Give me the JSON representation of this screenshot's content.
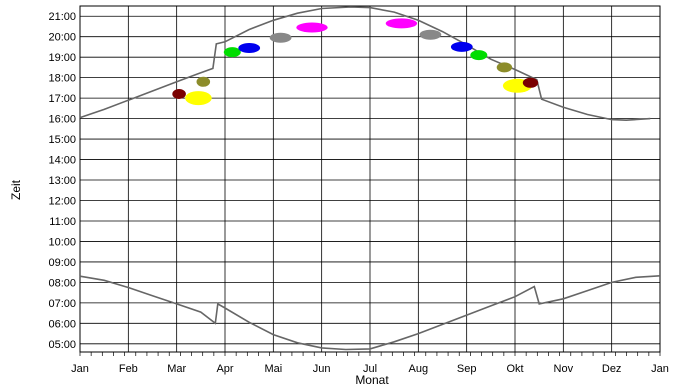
{
  "chart_data": {
    "type": "line",
    "title": "",
    "xlabel": "Monat",
    "ylabel": "Zeit",
    "x_categories": [
      "Jan",
      "Feb",
      "Mar",
      "Apr",
      "Mai",
      "Jun",
      "Jul",
      "Aug",
      "Sep",
      "Okt",
      "Nov",
      "Dez",
      "Jan"
    ],
    "y_ticks": [
      "05:00",
      "06:00",
      "07:00",
      "08:00",
      "09:00",
      "10:00",
      "11:00",
      "12:00",
      "13:00",
      "14:00",
      "15:00",
      "16:00",
      "17:00",
      "18:00",
      "19:00",
      "20:00",
      "21:00"
    ],
    "xlim_months": [
      0,
      12
    ],
    "ylim_hours": [
      4.6,
      21.5
    ],
    "grid": true,
    "series": [
      {
        "role": "sunset",
        "color": "#666666",
        "points": [
          [
            0.0,
            16.05
          ],
          [
            0.5,
            16.45
          ],
          [
            1.0,
            16.9
          ],
          [
            1.5,
            17.35
          ],
          [
            2.0,
            17.8
          ],
          [
            2.45,
            18.2
          ],
          [
            2.75,
            18.45
          ],
          [
            2.82,
            19.65
          ],
          [
            3.0,
            19.75
          ],
          [
            3.5,
            20.35
          ],
          [
            4.0,
            20.8
          ],
          [
            4.5,
            21.15
          ],
          [
            5.0,
            21.38
          ],
          [
            5.6,
            21.45
          ],
          [
            6.0,
            21.42
          ],
          [
            6.5,
            21.2
          ],
          [
            7.0,
            20.8
          ],
          [
            7.5,
            20.25
          ],
          [
            8.0,
            19.6
          ],
          [
            8.5,
            18.9
          ],
          [
            9.0,
            18.4
          ],
          [
            9.45,
            17.9
          ],
          [
            9.55,
            16.95
          ],
          [
            10.0,
            16.55
          ],
          [
            10.5,
            16.2
          ],
          [
            11.0,
            15.95
          ],
          [
            11.3,
            15.92
          ],
          [
            11.8,
            16.0
          ]
        ]
      },
      {
        "role": "sunrise",
        "color": "#666666",
        "points": [
          [
            0.0,
            8.3
          ],
          [
            0.5,
            8.1
          ],
          [
            1.0,
            7.75
          ],
          [
            1.5,
            7.35
          ],
          [
            2.0,
            6.95
          ],
          [
            2.5,
            6.55
          ],
          [
            2.8,
            6.0
          ],
          [
            2.85,
            6.95
          ],
          [
            3.0,
            6.75
          ],
          [
            3.5,
            6.05
          ],
          [
            4.0,
            5.45
          ],
          [
            4.5,
            5.05
          ],
          [
            5.0,
            4.8
          ],
          [
            5.5,
            4.72
          ],
          [
            6.0,
            4.75
          ],
          [
            6.5,
            5.1
          ],
          [
            7.0,
            5.5
          ],
          [
            7.5,
            5.95
          ],
          [
            8.0,
            6.4
          ],
          [
            8.5,
            6.85
          ],
          [
            9.0,
            7.3
          ],
          [
            9.4,
            7.8
          ],
          [
            9.5,
            6.95
          ],
          [
            10.0,
            7.2
          ],
          [
            10.5,
            7.6
          ],
          [
            11.0,
            8.0
          ],
          [
            11.5,
            8.25
          ],
          [
            12.0,
            8.32
          ]
        ]
      }
    ],
    "markers": [
      {
        "month": 2.05,
        "time": 17.2,
        "color": "#7a0000",
        "width_months": 0.28
      },
      {
        "month": 2.45,
        "time": 17.0,
        "color": "#ffff00",
        "width_months": 0.55
      },
      {
        "month": 2.55,
        "time": 17.8,
        "color": "#8c8c2a",
        "width_months": 0.28
      },
      {
        "month": 3.15,
        "time": 19.25,
        "color": "#00dd00",
        "width_months": 0.35
      },
      {
        "month": 3.5,
        "time": 19.45,
        "color": "#0000ee",
        "width_months": 0.45
      },
      {
        "month": 4.15,
        "time": 19.95,
        "color": "#888888",
        "width_months": 0.45
      },
      {
        "month": 4.8,
        "time": 20.45,
        "color": "#ff00ff",
        "width_months": 0.65
      },
      {
        "month": 6.65,
        "time": 20.65,
        "color": "#ff00ff",
        "width_months": 0.65
      },
      {
        "month": 7.25,
        "time": 20.1,
        "color": "#888888",
        "width_months": 0.45
      },
      {
        "month": 7.9,
        "time": 19.5,
        "color": "#0000ee",
        "width_months": 0.45
      },
      {
        "month": 8.25,
        "time": 19.1,
        "color": "#00dd00",
        "width_months": 0.35
      },
      {
        "month": 8.78,
        "time": 18.5,
        "color": "#8c8c2a",
        "width_months": 0.32
      },
      {
        "month": 9.05,
        "time": 17.6,
        "color": "#ffff00",
        "width_months": 0.6
      },
      {
        "month": 9.32,
        "time": 17.75,
        "color": "#7a0000",
        "width_months": 0.32
      }
    ]
  }
}
